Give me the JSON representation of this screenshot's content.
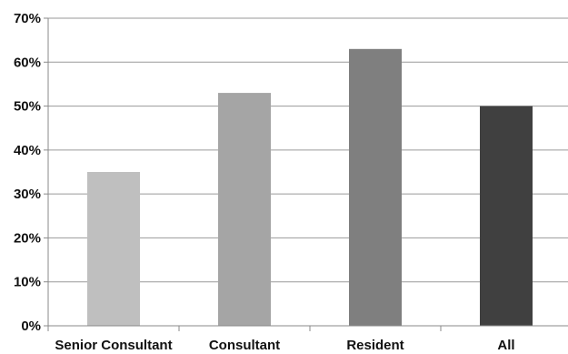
{
  "chart_data": {
    "type": "bar",
    "categories": [
      "Senior Consultant",
      "Consultant",
      "Resident",
      "All"
    ],
    "values": [
      35,
      53,
      63,
      50
    ],
    "colors": [
      "#bfbfbf",
      "#a5a5a5",
      "#7f7f7f",
      "#404040"
    ],
    "title": "",
    "xlabel": "",
    "ylabel": "",
    "ylim": [
      0,
      70
    ],
    "yticks": [
      "0%",
      "10%",
      "20%",
      "30%",
      "40%",
      "50%",
      "60%",
      "70%"
    ],
    "grid": true,
    "legend": "none"
  }
}
